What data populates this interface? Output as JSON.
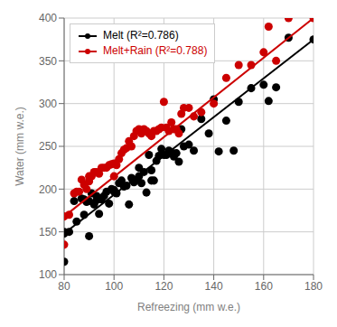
{
  "chart_data": {
    "type": "scatter",
    "xlabel": "Refreezing (mm w.e.)",
    "ylabel": "Water (mm w.e.)",
    "xlim": [
      80,
      180
    ],
    "ylim": [
      100,
      400
    ],
    "xticks": [
      80,
      100,
      120,
      140,
      160,
      180
    ],
    "yticks": [
      100,
      150,
      200,
      250,
      300,
      350,
      400
    ],
    "grid": true,
    "legend": "upper left",
    "series": [
      {
        "type": "scatter",
        "color": "#000000",
        "marker": "circle",
        "x": [
          80,
          80,
          82,
          84,
          85,
          87,
          88,
          88,
          89,
          90,
          90,
          91,
          92,
          93,
          93,
          94,
          95,
          96,
          97,
          98,
          99,
          100,
          100,
          101,
          102,
          103,
          104,
          105,
          106,
          107,
          108,
          109,
          110,
          110,
          111,
          112,
          113,
          114,
          115,
          115,
          116,
          117,
          118,
          119,
          120,
          121,
          122,
          123,
          124,
          125,
          126,
          127,
          128,
          130,
          132,
          135,
          138,
          140,
          142,
          145,
          148,
          150,
          155,
          160,
          162,
          165,
          170
        ],
        "values": [
          150,
          115,
          150,
          186,
          162,
          189,
          188,
          170,
          185,
          186,
          145,
          195,
          182,
          187,
          192,
          171,
          188,
          192,
          197,
          183,
          200,
          199,
          197,
          195,
          207,
          210,
          203,
          204,
          182,
          213,
          208,
          211,
          225,
          215,
          207,
          220,
          196,
          240,
          222,
          210,
          210,
          233,
          239,
          247,
          240,
          240,
          245,
          243,
          238,
          242,
          232,
          270,
          250,
          252,
          245,
          282,
          265,
          305,
          244,
          280,
          245,
          302,
          318,
          322,
          303,
          319,
          377
        ]
      },
      {
        "type": "scatter",
        "color": "#cc0000",
        "marker": "circle",
        "x": [
          80,
          82,
          84,
          85,
          86,
          87,
          88,
          89,
          90,
          90,
          91,
          92,
          93,
          94,
          95,
          96,
          97,
          98,
          99,
          100,
          100,
          101,
          102,
          103,
          104,
          105,
          106,
          107,
          108,
          109,
          110,
          111,
          112,
          113,
          114,
          115,
          116,
          117,
          118,
          119,
          120,
          121,
          122,
          123,
          124,
          125,
          126,
          127,
          128,
          130,
          132,
          135,
          140,
          145,
          150,
          155,
          160,
          162,
          165,
          170
        ],
        "values": [
          135,
          170,
          195,
          197,
          197,
          211,
          205,
          200,
          209,
          215,
          215,
          220,
          220,
          218,
          225,
          225,
          225,
          228,
          229,
          215,
          230,
          228,
          235,
          242,
          246,
          248,
          256,
          250,
          262,
          268,
          270,
          265,
          270,
          268,
          265,
          262,
          268,
          268,
          270,
          272,
          302,
          272,
          268,
          278,
          270,
          270,
          265,
          288,
          295,
          295,
          285,
          290,
          300,
          330,
          345,
          345,
          360,
          390,
          350,
          400
        ]
      },
      {
        "type": "line",
        "name": "Melt (R²=0.786)",
        "color": "#000000",
        "marker": "circle",
        "x": [
          80,
          180
        ],
        "values": [
          148,
          375
        ]
      },
      {
        "type": "line",
        "name": "Melt+Rain (R²=0.788)",
        "color": "#cc0000",
        "marker": "circle",
        "x": [
          80,
          180
        ],
        "values": [
          168,
          400
        ]
      }
    ]
  }
}
